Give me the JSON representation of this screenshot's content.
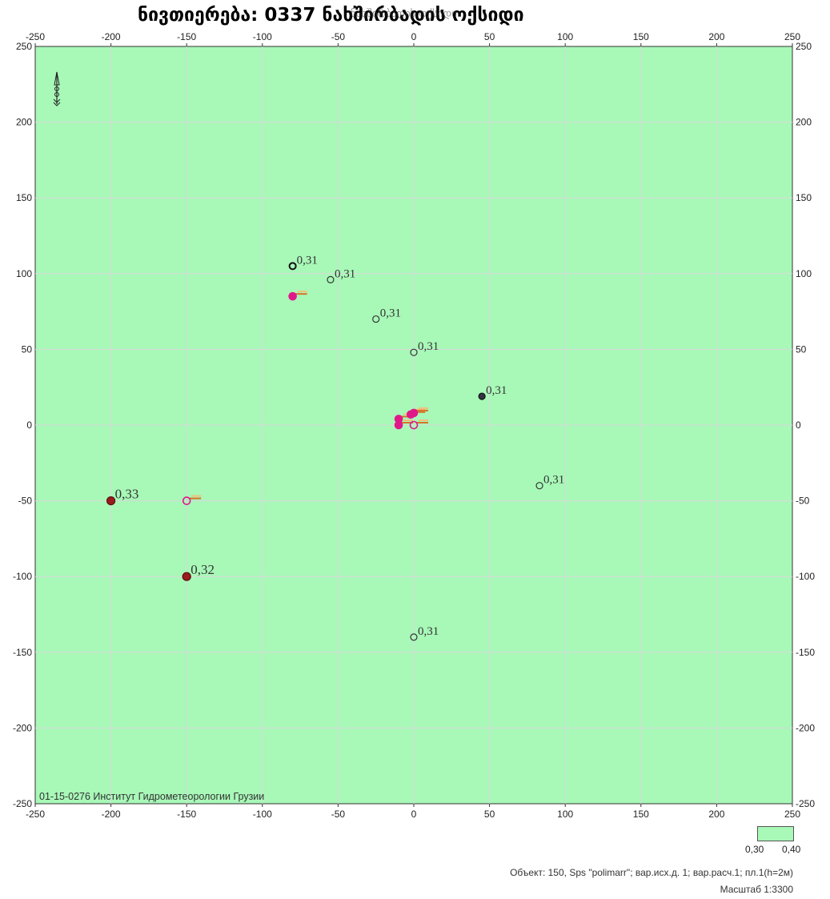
{
  "title": "ნივთიერება: 0337  ნახშირბადის ოქსიდი",
  "title_overlay": "ნახშირბადის ოქსიდი",
  "footer": {
    "watermark": "01-15-0276 Институт Гидрометеорологии Грузии",
    "object_info": "Объект: 150, Sps \"polimarr\"; вар.исх.д. 1; вар.расч.1; пл.1(h=2м)",
    "scale": "Масштаб 1:3300"
  },
  "legend": {
    "low": "0,30",
    "high": "0,40",
    "fill_color": "#a8f8b8"
  },
  "colors": {
    "plot_background": "#a8f8b8",
    "grid": "#d9d9d9",
    "source_fill": "#e0188a",
    "receptor_dark": "#9b1c1c"
  },
  "chart_data": {
    "type": "scatter",
    "xlim": [
      -250,
      250
    ],
    "ylim": [
      -250,
      250
    ],
    "grid": true,
    "x_ticks": [
      "-250",
      "-200",
      "-150",
      "-100",
      "-50",
      "0",
      "50",
      "100",
      "150",
      "200",
      "250"
    ],
    "y_ticks": [
      "250",
      "200",
      "150",
      "100",
      "50",
      "0",
      "-50",
      "-100",
      "-150",
      "-200",
      "-250"
    ],
    "receptor_points": [
      {
        "x": -80,
        "y": 105,
        "label": "0,31",
        "style": "open-dark"
      },
      {
        "x": -55,
        "y": 96,
        "label": "0,31",
        "style": "open"
      },
      {
        "x": -25,
        "y": 70,
        "label": "0,31",
        "style": "open"
      },
      {
        "x": 0,
        "y": 48,
        "label": "0,31",
        "style": "open"
      },
      {
        "x": 45,
        "y": 19,
        "label": "0,31",
        "style": "dark"
      },
      {
        "x": 83,
        "y": -40,
        "label": "0,31",
        "style": "open"
      },
      {
        "x": -200,
        "y": -50,
        "label": "0,33",
        "style": "filled"
      },
      {
        "x": -150,
        "y": -100,
        "label": "0,32",
        "style": "filled"
      },
      {
        "x": 0,
        "y": -140,
        "label": "0,31",
        "style": "open"
      }
    ],
    "source_points": [
      {
        "x": -80,
        "y": 85,
        "style": "filled"
      },
      {
        "x": -150,
        "y": -50,
        "style": "open"
      },
      {
        "x": -10,
        "y": 4,
        "style": "filled"
      },
      {
        "x": -10,
        "y": 0,
        "style": "filled"
      },
      {
        "x": -2,
        "y": 7,
        "style": "filled"
      },
      {
        "x": 0,
        "y": 8,
        "style": "filled"
      },
      {
        "x": 0,
        "y": 0,
        "style": "open"
      }
    ]
  }
}
